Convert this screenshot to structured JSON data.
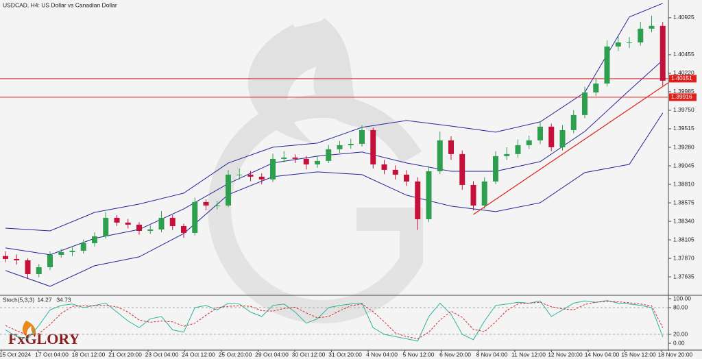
{
  "chart_data": {
    "type": "candlestick",
    "title": "USDCAD, H4:  US Dollar vs Canadian Dollar",
    "brand": "FxGLORY",
    "up_color": "#2e9e4f",
    "down_color": "#c4103a",
    "ylim": [
      1.3741,
      1.4115
    ],
    "yticks": [
      1.40925,
      1.40455,
      {
        "value": 1.4022,
        "label": "1.40220"
      },
      1.39985,
      {
        "value": 1.3975,
        "label": "1.39750"
      },
      1.39515,
      {
        "value": 1.3928,
        "label": "1.39280"
      },
      1.39045,
      {
        "value": 1.3881,
        "label": "1.38810"
      },
      1.38575,
      {
        "value": 1.3834,
        "label": "1.38340"
      },
      1.38105,
      {
        "value": 1.3787,
        "label": "1.37870"
      },
      1.37635
    ],
    "levels": [
      1.40151,
      1.39916
    ],
    "level_color": "#e0201c",
    "time_labels": [
      "15 Oct 2024",
      "17 Oct 04:00",
      "18 Oct 12:00",
      "21 Oct 20:00",
      "23 Oct 04:00",
      "24 Oct 12:00",
      "25 Oct 20:00",
      "29 Oct 04:00",
      "30 Oct 12:00",
      "31 Oct 20:00",
      "4 Nov 04:00",
      "5 Nov 12:00",
      "6 Nov 20:00",
      "8 Nov 04:00",
      "11 Nov 12:00",
      "12 Nov 20:00",
      "14 Nov 04:00",
      "15 Nov 12:00",
      "18 Nov 20:00"
    ],
    "candles": [
      [
        1.379,
        1.3796,
        1.3782,
        1.37863
      ],
      [
        1.37863,
        1.3792,
        1.3779,
        1.37845
      ],
      [
        1.37845,
        1.3787,
        1.3761,
        1.37671
      ],
      [
        1.37671,
        1.378,
        1.3763,
        1.37758
      ],
      [
        1.37758,
        1.3796,
        1.3772,
        1.37915
      ],
      [
        1.37915,
        1.3799,
        1.3788,
        1.3795
      ],
      [
        1.3795,
        1.3801,
        1.379,
        1.37967
      ],
      [
        1.37967,
        1.3811,
        1.3793,
        1.38063
      ],
      [
        1.38063,
        1.382,
        1.3802,
        1.3815
      ],
      [
        1.3815,
        1.3846,
        1.3812,
        1.38385
      ],
      [
        1.38385,
        1.3842,
        1.3828,
        1.38324
      ],
      [
        1.38324,
        1.3837,
        1.3825,
        1.38298
      ],
      [
        1.38298,
        1.3833,
        1.3817,
        1.38219
      ],
      [
        1.38219,
        1.3829,
        1.3818,
        1.38237
      ],
      [
        1.38237,
        1.3847,
        1.382,
        1.38385
      ],
      [
        1.38385,
        1.3842,
        1.3823,
        1.3828
      ],
      [
        1.3828,
        1.3831,
        1.3813,
        1.38193
      ],
      [
        1.38193,
        1.3864,
        1.3816,
        1.38585
      ],
      [
        1.38585,
        1.3862,
        1.3848,
        1.38541
      ],
      [
        1.38541,
        1.386,
        1.3849,
        1.38541
      ],
      [
        1.38541,
        1.3899,
        1.3852,
        1.38933
      ],
      [
        1.38933,
        1.3901,
        1.3887,
        1.38933
      ],
      [
        1.38933,
        1.3898,
        1.3885,
        1.38907
      ],
      [
        1.38907,
        1.3895,
        1.3881,
        1.38872
      ],
      [
        1.38872,
        1.392,
        1.3884,
        1.39133
      ],
      [
        1.39133,
        1.3923,
        1.3909,
        1.3915
      ],
      [
        1.3915,
        1.3919,
        1.3908,
        1.39133
      ],
      [
        1.39133,
        1.3917,
        1.39,
        1.39063
      ],
      [
        1.39063,
        1.3916,
        1.3902,
        1.39107
      ],
      [
        1.39107,
        1.3931,
        1.3908,
        1.39255
      ],
      [
        1.39255,
        1.3936,
        1.3921,
        1.39307
      ],
      [
        1.39307,
        1.3939,
        1.3926,
        1.39324
      ],
      [
        1.39324,
        1.3956,
        1.3929,
        1.39498
      ],
      [
        1.39498,
        1.3953,
        1.3901,
        1.39063
      ],
      [
        1.39063,
        1.3912,
        1.3894,
        1.38994
      ],
      [
        1.38994,
        1.3905,
        1.3887,
        1.38933
      ],
      [
        1.38933,
        1.3899,
        1.3879,
        1.38846
      ],
      [
        1.38846,
        1.389,
        1.3823,
        1.38367
      ],
      [
        1.38367,
        1.3904,
        1.3833,
        1.38976
      ],
      [
        1.38976,
        1.3948,
        1.3894,
        1.39368
      ],
      [
        1.39368,
        1.3942,
        1.3912,
        1.39194
      ],
      [
        1.39194,
        1.3924,
        1.3874,
        1.38802
      ],
      [
        1.38802,
        1.3885,
        1.3848,
        1.38541
      ],
      [
        1.38541,
        1.389,
        1.385,
        1.38846
      ],
      [
        1.38846,
        1.3923,
        1.3881,
        1.39168
      ],
      [
        1.39168,
        1.3928,
        1.3912,
        1.39194
      ],
      [
        1.39194,
        1.3938,
        1.3915,
        1.39307
      ],
      [
        1.39307,
        1.3943,
        1.3926,
        1.39368
      ],
      [
        1.39368,
        1.3961,
        1.3932,
        1.39542
      ],
      [
        1.39542,
        1.3958,
        1.3923,
        1.39281
      ],
      [
        1.39281,
        1.3956,
        1.3924,
        1.39498
      ],
      [
        1.39498,
        1.3975,
        1.3946,
        1.3969
      ],
      [
        1.3969,
        1.4005,
        1.3965,
        1.39977
      ],
      [
        1.39977,
        1.4016,
        1.3993,
        1.4009
      ],
      [
        1.4009,
        1.4064,
        1.4005,
        1.4056
      ],
      [
        1.4056,
        1.407,
        1.405,
        1.40612
      ],
      [
        1.40612,
        1.4068,
        1.4054,
        1.40612
      ],
      [
        1.40612,
        1.4087,
        1.4057,
        1.40786
      ],
      [
        1.40786,
        1.4095,
        1.4074,
        1.40821
      ],
      [
        1.40821,
        1.4087,
        1.4006,
        1.40125
      ]
    ],
    "bands": {
      "x": [
        0,
        4,
        8,
        12,
        16,
        20,
        24,
        28,
        32,
        36,
        40,
        44,
        48,
        52,
        56,
        59
      ],
      "color": "#23239a",
      "series": [
        {
          "values": [
            1.38254,
            1.38219,
            1.38454,
            1.38559,
            1.38698,
            1.39081,
            1.39281,
            1.39333,
            1.39533,
            1.3962,
            1.3955,
            1.39472,
            1.39603,
            1.39977,
            1.40934,
            1.41108
          ]
        },
        {
          "values": [
            1.38002,
            1.37915,
            1.38124,
            1.38237,
            1.38498,
            1.3882,
            1.39081,
            1.39168,
            1.3922,
            1.39081,
            1.38976,
            1.38976,
            1.39098,
            1.39481,
            1.40003,
            1.40386
          ]
        },
        {
          "values": [
            1.37715,
            1.37515,
            1.37776,
            1.37889,
            1.38185,
            1.3868,
            1.38907,
            1.38968,
            1.38933,
            1.38672,
            1.38533,
            1.38463,
            1.38576,
            1.38959,
            1.39063,
            1.39716
          ]
        }
      ]
    },
    "trendline": {
      "x": [
        42,
        59.5
      ],
      "values": [
        1.38428,
        1.401
      ]
    },
    "stoch": {
      "label": "Stoch(5,3,3)",
      "ylim": [
        0,
        100
      ],
      "yticks": [
        {
          "value": 100,
          "label": "100.00"
        },
        {
          "value": 80,
          "label": "80.00"
        },
        {
          "value": 20,
          "label": "20.00"
        },
        {
          "value": 0,
          "label": "0.00"
        }
      ],
      "series": [
        {
          "color": "#2bb39b",
          "values": [
            30,
            15,
            10,
            40,
            75,
            85,
            88,
            80,
            85,
            90,
            70,
            50,
            35,
            55,
            60,
            30,
            25,
            80,
            85,
            75,
            90,
            88,
            70,
            60,
            85,
            88,
            70,
            45,
            55,
            80,
            85,
            88,
            90,
            35,
            20,
            15,
            10,
            5,
            60,
            90,
            65,
            20,
            8,
            50,
            85,
            88,
            92,
            90,
            95,
            60,
            75,
            90,
            95,
            92,
            96,
            90,
            88,
            85,
            80,
            14.27
          ]
        },
        {
          "color": "#d42a2a",
          "values": [
            40,
            28,
            18,
            22,
            42,
            67,
            83,
            84,
            84,
            85,
            82,
            70,
            52,
            47,
            50,
            48,
            38,
            45,
            63,
            80,
            83,
            84,
            83,
            73,
            72,
            78,
            81,
            68,
            57,
            60,
            73,
            84,
            88,
            71,
            48,
            23,
            15,
            10,
            25,
            52,
            72,
            58,
            31,
            26,
            48,
            74,
            88,
            90,
            92,
            82,
            77,
            75,
            87,
            92,
            94,
            93,
            91,
            88,
            84,
            34.73
          ]
        }
      ]
    }
  }
}
